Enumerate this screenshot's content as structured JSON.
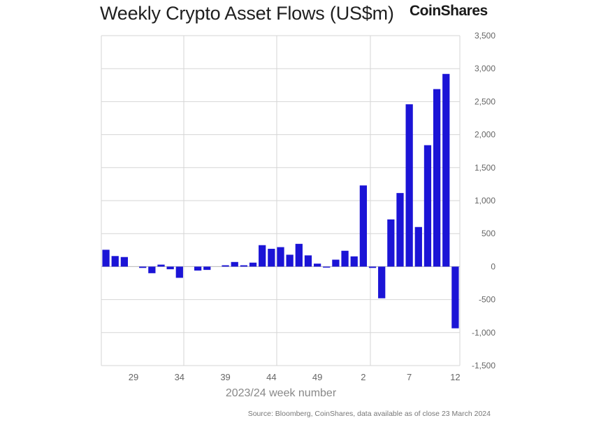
{
  "header": {
    "title": "Weekly Crypto Asset Flows (US$m)",
    "brand": "CoinShares"
  },
  "footer": {
    "source": "Source: Bloomberg, CoinShares, data available as of close 23 March 2024"
  },
  "colors": {
    "bar": "#1b14d6",
    "grid": "#d6d6d6",
    "axis_text": "#666666"
  },
  "chart_data": {
    "type": "bar",
    "title": "Weekly Crypto Asset Flows (US$m)",
    "xlabel": "2023/24 week number",
    "ylabel": "",
    "ylim": [
      -1500,
      3500
    ],
    "yticks": [
      3500,
      3000,
      2500,
      2000,
      1500,
      1000,
      500,
      0,
      -500,
      -1000,
      -1500
    ],
    "ytick_labels": [
      "3,500",
      "3,000",
      "2,500",
      "2,000",
      "1,500",
      "1,000",
      "500",
      "0",
      "-500",
      "-1,000",
      "-1,500"
    ],
    "y_axis_side": "right",
    "grid": true,
    "categories": [
      "26",
      "27",
      "28",
      "29",
      "30",
      "31",
      "32",
      "33",
      "34",
      "35",
      "36",
      "37",
      "38",
      "39",
      "40",
      "41",
      "42",
      "43",
      "44",
      "45",
      "46",
      "47",
      "48",
      "49",
      "50",
      "51",
      "52",
      "1",
      "2",
      "3",
      "4",
      "5",
      "6",
      "7",
      "8",
      "9",
      "10",
      "11",
      "12"
    ],
    "xtick_labels": [
      "29",
      "34",
      "39",
      "44",
      "49",
      "2",
      "7",
      "12"
    ],
    "values": [
      255,
      160,
      145,
      0,
      -20,
      -100,
      30,
      -40,
      -170,
      0,
      -60,
      -50,
      0,
      20,
      70,
      20,
      60,
      325,
      270,
      295,
      180,
      345,
      170,
      45,
      -15,
      105,
      240,
      155,
      1230,
      -20,
      -480,
      715,
      1115,
      2460,
      600,
      1840,
      2690,
      2920,
      -935
    ],
    "series": [
      {
        "name": "Weekly flows (US$m)",
        "values": [
          255,
          160,
          145,
          0,
          -20,
          -100,
          30,
          -40,
          -170,
          0,
          -60,
          -50,
          0,
          20,
          70,
          20,
          60,
          325,
          270,
          295,
          180,
          345,
          170,
          45,
          -15,
          105,
          240,
          155,
          1230,
          -20,
          -480,
          715,
          1115,
          2460,
          600,
          1840,
          2690,
          2920,
          -935
        ]
      }
    ]
  }
}
